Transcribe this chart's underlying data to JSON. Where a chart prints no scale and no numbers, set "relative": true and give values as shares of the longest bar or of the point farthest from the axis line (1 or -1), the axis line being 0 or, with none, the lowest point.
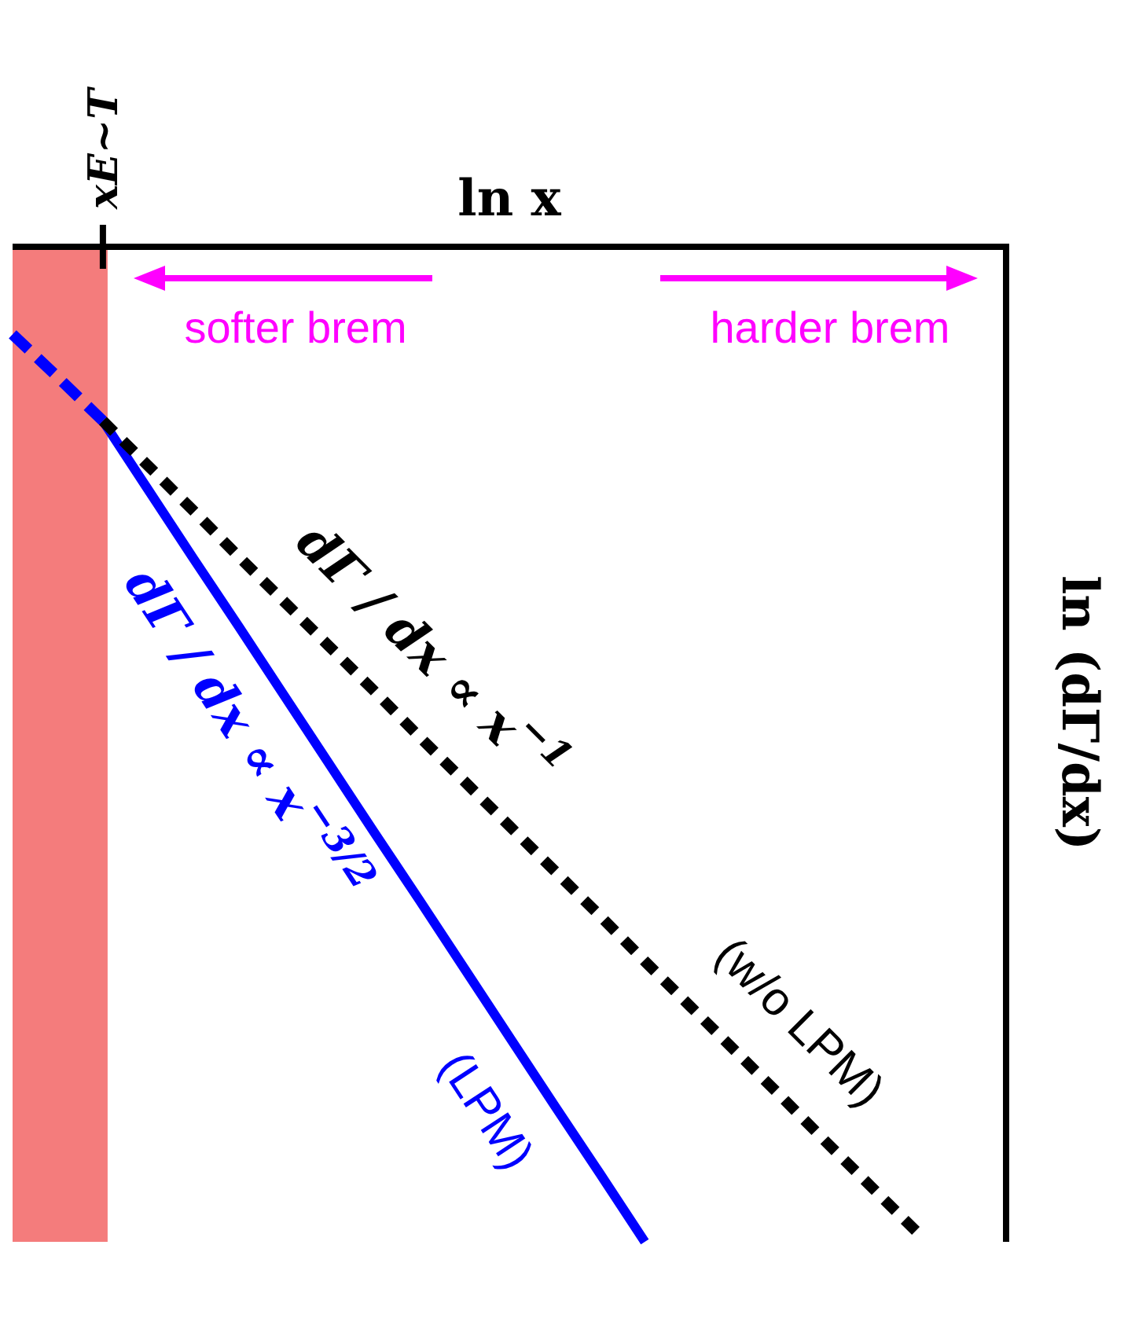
{
  "chart_data": {
    "type": "line",
    "relative": true,
    "xlabel": "ln x",
    "ylabel": "ln (dΓ/dx)",
    "categories": [
      null,
      null,
      null,
      null,
      null,
      null,
      null,
      null,
      null,
      null,
      null,
      null,
      null,
      null,
      null,
      null,
      null,
      null,
      null,
      null,
      null,
      null,
      null
    ],
    "series": [
      {
        "color": "#0000ff",
        "line_style": "dashed",
        "values": [
          -0.088,
          -0.131,
          -0.175,
          null,
          null,
          null,
          null,
          null,
          null,
          null,
          null,
          null,
          null,
          null,
          null,
          null,
          null,
          null,
          null,
          null,
          null,
          null,
          null
        ]
      },
      {
        "name": "(LPM)",
        "color": "#0000ff",
        "line_style": "solid",
        "values": [
          null,
          null,
          -0.175,
          -0.244,
          -0.313,
          -0.381,
          -0.45,
          -0.519,
          -0.588,
          -0.656,
          -0.725,
          -0.794,
          -0.863,
          -0.931,
          -1,
          null,
          null,
          null,
          null,
          null,
          null,
          null,
          null
        ]
      },
      {
        "name": "(w/o LPM)",
        "color": "#000000",
        "line_style": "dotted",
        "values": [
          null,
          null,
          -0.175,
          -0.22,
          -0.265,
          -0.311,
          -0.356,
          -0.401,
          -0.446,
          -0.492,
          -0.537,
          -0.582,
          -0.627,
          -0.672,
          -0.718,
          -0.763,
          -0.808,
          -0.853,
          -0.899,
          -0.944,
          -0.989,
          null,
          null
        ]
      }
    ],
    "annotations": [
      "softer brem",
      "harder brem",
      "xE~T",
      "dΓ / dx ∝ x$^{−3/2}$",
      "dΓ / dx ∝ x$^{−1}$"
    ],
    "legend": false
  }
}
